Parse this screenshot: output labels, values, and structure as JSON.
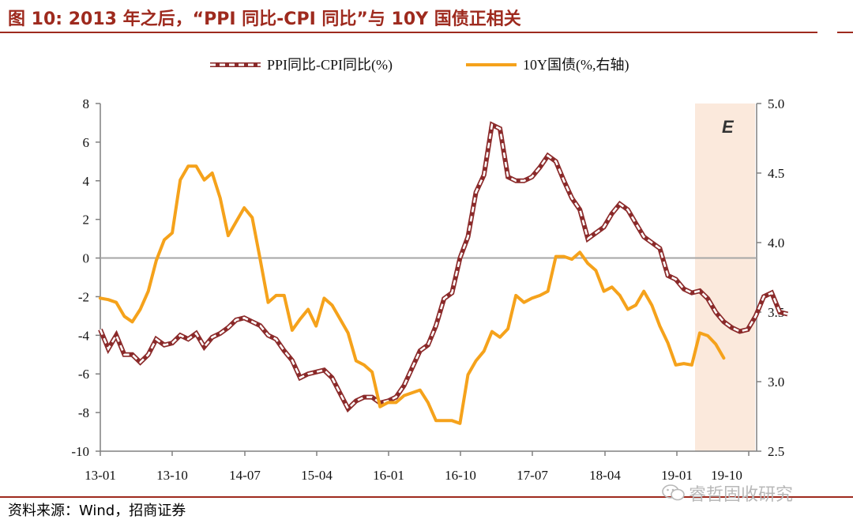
{
  "header": {
    "title": "图 10:  2013 年之后，“PPI 同比-CPI 同比”与 10Y 国债正相关"
  },
  "footer": {
    "source": "资料来源：Wind，招商证券"
  },
  "watermark": {
    "text": "睿哲固收研究",
    "icon": "wechat-icon"
  },
  "chart_data": {
    "type": "line",
    "forecast_label": "E",
    "legend_position": "top-center",
    "x_tick_labels": [
      "13-01",
      "13-10",
      "14-07",
      "15-04",
      "16-01",
      "16-10",
      "17-07",
      "18-04",
      "19-01",
      "19-10"
    ],
    "left_axis": {
      "ylim": [
        -10,
        8
      ],
      "ticks": [
        8,
        6,
        4,
        2,
        0,
        -2,
        -4,
        -6,
        -8,
        -10
      ]
    },
    "right_axis": {
      "ylim": [
        2.5,
        5.0
      ],
      "ticks": [
        "5.0",
        "4.5",
        "4.0",
        "3.5",
        "3.0",
        "2.5"
      ]
    },
    "colors": {
      "spread": "#8b2a2a",
      "yield": "#f5a21b",
      "forecast_band": "#fbe9dc",
      "zero_line": "#a6a6a6"
    },
    "series": [
      {
        "name": "PPI同比-CPI同比(%)",
        "axis": "left",
        "style": "dashed",
        "points": [
          [
            "2013-01",
            -3.7
          ],
          [
            "2013-02",
            -4.7
          ],
          [
            "2013-03",
            -4.0
          ],
          [
            "2013-04",
            -5.0
          ],
          [
            "2013-05",
            -5.0
          ],
          [
            "2013-06",
            -5.4
          ],
          [
            "2013-07",
            -5.0
          ],
          [
            "2013-08",
            -4.2
          ],
          [
            "2013-09",
            -4.5
          ],
          [
            "2013-10",
            -4.4
          ],
          [
            "2013-11",
            -4.0
          ],
          [
            "2013-12",
            -4.2
          ],
          [
            "2014-01",
            -3.9
          ],
          [
            "2014-02",
            -4.6
          ],
          [
            "2014-03",
            -4.1
          ],
          [
            "2014-04",
            -3.9
          ],
          [
            "2014-05",
            -3.6
          ],
          [
            "2014-06",
            -3.2
          ],
          [
            "2014-07",
            -3.1
          ],
          [
            "2014-08",
            -3.3
          ],
          [
            "2014-09",
            -3.5
          ],
          [
            "2014-10",
            -4.0
          ],
          [
            "2014-11",
            -4.2
          ],
          [
            "2014-12",
            -4.8
          ],
          [
            "2015-01",
            -5.3
          ],
          [
            "2015-02",
            -6.2
          ],
          [
            "2015-03",
            -6.0
          ],
          [
            "2015-04",
            -5.9
          ],
          [
            "2015-05",
            -5.8
          ],
          [
            "2015-06",
            -6.2
          ],
          [
            "2015-07",
            -7.0
          ],
          [
            "2015-08",
            -7.8
          ],
          [
            "2015-09",
            -7.4
          ],
          [
            "2015-10",
            -7.2
          ],
          [
            "2015-11",
            -7.2
          ],
          [
            "2015-12",
            -7.5
          ],
          [
            "2016-01",
            -7.4
          ],
          [
            "2016-02",
            -7.2
          ],
          [
            "2016-03",
            -6.6
          ],
          [
            "2016-04",
            -5.7
          ],
          [
            "2016-05",
            -4.8
          ],
          [
            "2016-06",
            -4.5
          ],
          [
            "2016-07",
            -3.5
          ],
          [
            "2016-08",
            -2.1
          ],
          [
            "2016-09",
            -1.8
          ],
          [
            "2016-10",
            0.0
          ],
          [
            "2016-11",
            1.1
          ],
          [
            "2016-12",
            3.4
          ],
          [
            "2017-01",
            4.3
          ],
          [
            "2017-02",
            6.9
          ],
          [
            "2017-03",
            6.7
          ],
          [
            "2017-04",
            4.2
          ],
          [
            "2017-05",
            4.0
          ],
          [
            "2017-06",
            4.0
          ],
          [
            "2017-07",
            4.2
          ],
          [
            "2017-08",
            4.7
          ],
          [
            "2017-09",
            5.3
          ],
          [
            "2017-10",
            5.0
          ],
          [
            "2017-11",
            4.0
          ],
          [
            "2017-12",
            3.1
          ],
          [
            "2018-01",
            2.5
          ],
          [
            "2018-02",
            1.0
          ],
          [
            "2018-03",
            1.3
          ],
          [
            "2018-04",
            1.6
          ],
          [
            "2018-05",
            2.3
          ],
          [
            "2018-06",
            2.8
          ],
          [
            "2018-07",
            2.5
          ],
          [
            "2018-08",
            1.8
          ],
          [
            "2018-09",
            1.1
          ],
          [
            "2018-10",
            0.8
          ],
          [
            "2018-11",
            0.5
          ],
          [
            "2018-12",
            -0.9
          ],
          [
            "2019-01",
            -1.1
          ],
          [
            "2019-02",
            -1.6
          ],
          [
            "2019-03",
            -1.8
          ],
          [
            "2019-04",
            -1.7
          ],
          [
            "2019-05",
            -2.1
          ],
          [
            "2019-06",
            -2.8
          ],
          [
            "2019-07",
            -3.3
          ],
          [
            "2019-08",
            -3.6
          ],
          [
            "2019-09",
            -3.8
          ],
          [
            "2019-10",
            -3.7
          ],
          [
            "2019-11",
            -3.0
          ],
          [
            "2019-12",
            -2.0
          ],
          [
            "2020-01",
            -1.8
          ],
          [
            "2020-02",
            -2.8
          ],
          [
            "2020-03",
            -2.9
          ]
        ]
      },
      {
        "name": "10Y国债(%,右轴)",
        "axis": "right",
        "style": "solid",
        "points": [
          [
            "2013-01",
            3.6
          ],
          [
            "2013-02",
            3.59
          ],
          [
            "2013-03",
            3.57
          ],
          [
            "2013-04",
            3.47
          ],
          [
            "2013-05",
            3.43
          ],
          [
            "2013-06",
            3.52
          ],
          [
            "2013-07",
            3.65
          ],
          [
            "2013-08",
            3.87
          ],
          [
            "2013-09",
            4.02
          ],
          [
            "2013-10",
            4.07
          ],
          [
            "2013-11",
            4.45
          ],
          [
            "2013-12",
            4.55
          ],
          [
            "2014-01",
            4.55
          ],
          [
            "2014-02",
            4.45
          ],
          [
            "2014-03",
            4.5
          ],
          [
            "2014-04",
            4.32
          ],
          [
            "2014-05",
            4.05
          ],
          [
            "2014-06",
            4.15
          ],
          [
            "2014-07",
            4.25
          ],
          [
            "2014-08",
            4.18
          ],
          [
            "2014-09",
            3.88
          ],
          [
            "2014-10",
            3.57
          ],
          [
            "2014-11",
            3.62
          ],
          [
            "2014-12",
            3.62
          ],
          [
            "2015-01",
            3.37
          ],
          [
            "2015-02",
            3.45
          ],
          [
            "2015-03",
            3.52
          ],
          [
            "2015-04",
            3.4
          ],
          [
            "2015-05",
            3.6
          ],
          [
            "2015-06",
            3.55
          ],
          [
            "2015-07",
            3.45
          ],
          [
            "2015-08",
            3.35
          ],
          [
            "2015-09",
            3.15
          ],
          [
            "2015-10",
            3.12
          ],
          [
            "2015-11",
            3.07
          ],
          [
            "2015-12",
            2.82
          ],
          [
            "2016-01",
            2.85
          ],
          [
            "2016-02",
            2.85
          ],
          [
            "2016-03",
            2.9
          ],
          [
            "2016-04",
            2.92
          ],
          [
            "2016-05",
            2.94
          ],
          [
            "2016-06",
            2.85
          ],
          [
            "2016-07",
            2.72
          ],
          [
            "2016-08",
            2.72
          ],
          [
            "2016-09",
            2.72
          ],
          [
            "2016-10",
            2.7
          ],
          [
            "2016-11",
            3.05
          ],
          [
            "2016-12",
            3.15
          ],
          [
            "2017-01",
            3.22
          ],
          [
            "2017-02",
            3.36
          ],
          [
            "2017-03",
            3.32
          ],
          [
            "2017-04",
            3.38
          ],
          [
            "2017-05",
            3.62
          ],
          [
            "2017-06",
            3.57
          ],
          [
            "2017-07",
            3.6
          ],
          [
            "2017-08",
            3.62
          ],
          [
            "2017-09",
            3.65
          ],
          [
            "2017-10",
            3.9
          ],
          [
            "2017-11",
            3.9
          ],
          [
            "2017-12",
            3.88
          ],
          [
            "2018-01",
            3.93
          ],
          [
            "2018-02",
            3.85
          ],
          [
            "2018-03",
            3.8
          ],
          [
            "2018-04",
            3.65
          ],
          [
            "2018-05",
            3.68
          ],
          [
            "2018-06",
            3.62
          ],
          [
            "2018-07",
            3.52
          ],
          [
            "2018-08",
            3.55
          ],
          [
            "2018-09",
            3.65
          ],
          [
            "2018-10",
            3.55
          ],
          [
            "2018-11",
            3.4
          ],
          [
            "2018-12",
            3.28
          ],
          [
            "2019-01",
            3.12
          ],
          [
            "2019-02",
            3.13
          ],
          [
            "2019-03",
            3.12
          ],
          [
            "2019-04",
            3.35
          ],
          [
            "2019-05",
            3.33
          ],
          [
            "2019-06",
            3.27
          ],
          [
            "2019-07",
            3.17
          ]
        ]
      }
    ]
  }
}
